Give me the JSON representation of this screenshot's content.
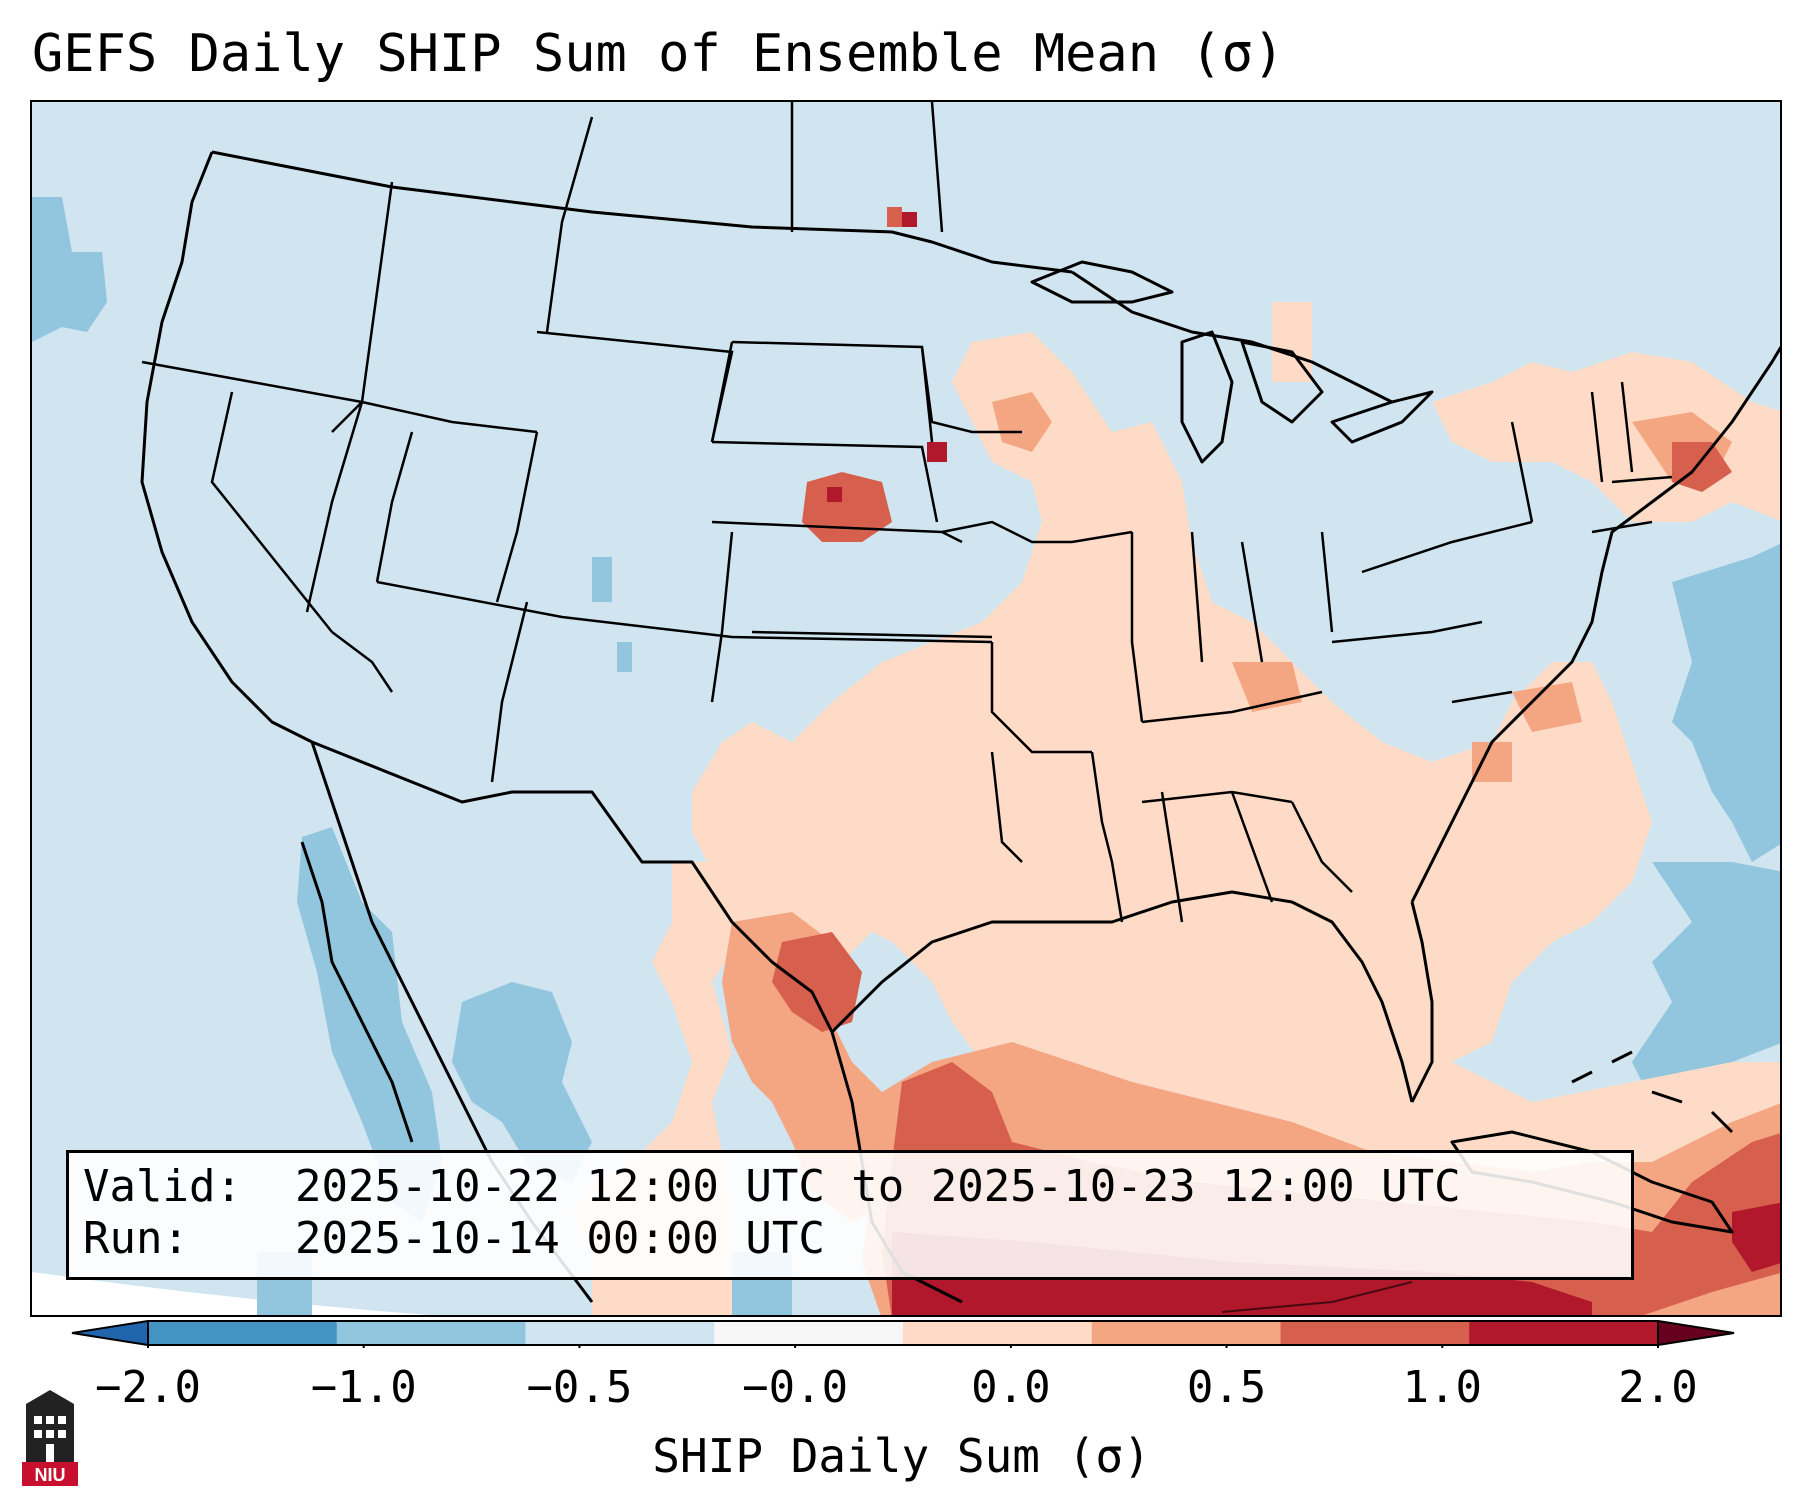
{
  "title": "GEFS Daily SHIP Sum of Ensemble Mean (σ)",
  "info": {
    "valid_label": "Valid:",
    "valid_value": "2025-10-22 12:00 UTC to 2025-10-23 12:00 UTC",
    "run_label": "Run:",
    "run_value": "2025-10-14 00:00 UTC"
  },
  "colorbar": {
    "label": "SHIP Daily Sum (σ)",
    "ticks": [
      "−2.0",
      "−1.0",
      "−0.5",
      "−0.0",
      "0.0",
      "0.5",
      "1.0",
      "2.0"
    ],
    "colors": [
      "#4393c3",
      "#92c5de",
      "#d1e5f0",
      "#f7f7f7",
      "#fddbc7",
      "#f4a582",
      "#d6604d",
      "#b2182b"
    ],
    "extend_low_color": "#2166ac",
    "extend_high_color": "#67001f"
  },
  "legend": {
    "background": "#d1e5f0",
    "land_and_lines": "#000000"
  },
  "logo": {
    "text": "NIU",
    "icon": "university-tower-icon"
  }
}
